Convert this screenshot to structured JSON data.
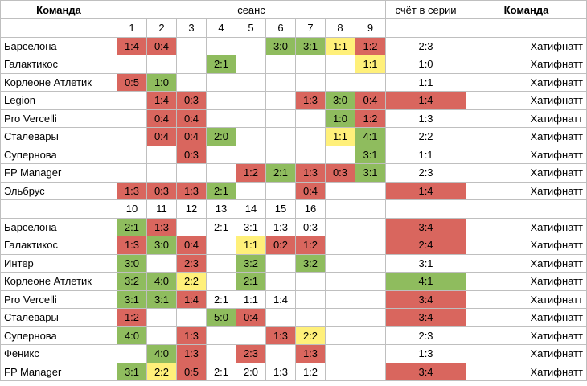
{
  "headers": {
    "team": "Команда",
    "session": "сеанс",
    "series_score": "счёт в серии",
    "opponent": "Команда"
  },
  "colors": {
    "red": "#d9665e",
    "green": "#8fbc5e",
    "yellow": "#fff07a"
  },
  "sections": [
    {
      "sessions": [
        "1",
        "2",
        "3",
        "4",
        "5",
        "6",
        "7",
        "8",
        "9"
      ],
      "rows": [
        {
          "team": "Барселона",
          "cells": [
            {
              "v": "1:4",
              "c": "r"
            },
            {
              "v": "0:4",
              "c": "r"
            },
            {
              "v": "",
              "c": ""
            },
            {
              "v": "",
              "c": ""
            },
            {
              "v": "",
              "c": ""
            },
            {
              "v": "3:0",
              "c": "g"
            },
            {
              "v": "3:1",
              "c": "g"
            },
            {
              "v": "1:1",
              "c": "y"
            },
            {
              "v": "1:2",
              "c": "r"
            }
          ],
          "series": {
            "v": "2:3",
            "c": ""
          },
          "opponent": "Хатифнатт"
        },
        {
          "team": "Галактикос",
          "cells": [
            {
              "v": "",
              "c": ""
            },
            {
              "v": "",
              "c": ""
            },
            {
              "v": "",
              "c": ""
            },
            {
              "v": "2:1",
              "c": "g"
            },
            {
              "v": "",
              "c": ""
            },
            {
              "v": "",
              "c": ""
            },
            {
              "v": "",
              "c": ""
            },
            {
              "v": "",
              "c": ""
            },
            {
              "v": "1:1",
              "c": "y"
            }
          ],
          "series": {
            "v": "1:0",
            "c": ""
          },
          "opponent": "Хатифнатт"
        },
        {
          "team": "Корлеоне Атлетик",
          "cells": [
            {
              "v": "0:5",
              "c": "r"
            },
            {
              "v": "1:0",
              "c": "g"
            },
            {
              "v": "",
              "c": ""
            },
            {
              "v": "",
              "c": ""
            },
            {
              "v": "",
              "c": ""
            },
            {
              "v": "",
              "c": ""
            },
            {
              "v": "",
              "c": ""
            },
            {
              "v": "",
              "c": ""
            },
            {
              "v": "",
              "c": ""
            }
          ],
          "series": {
            "v": "1:1",
            "c": ""
          },
          "opponent": "Хатифнатт"
        },
        {
          "team": "Legion",
          "cells": [
            {
              "v": "",
              "c": ""
            },
            {
              "v": "1:4",
              "c": "r"
            },
            {
              "v": "0:3",
              "c": "r"
            },
            {
              "v": "",
              "c": ""
            },
            {
              "v": "",
              "c": ""
            },
            {
              "v": "",
              "c": ""
            },
            {
              "v": "1:3",
              "c": "r"
            },
            {
              "v": "3:0",
              "c": "g"
            },
            {
              "v": "0:4",
              "c": "r"
            }
          ],
          "series": {
            "v": "1:4",
            "c": "r"
          },
          "opponent": "Хатифнатт"
        },
        {
          "team": "Pro Vercelli",
          "cells": [
            {
              "v": "",
              "c": ""
            },
            {
              "v": "0:4",
              "c": "r"
            },
            {
              "v": "0:4",
              "c": "r"
            },
            {
              "v": "",
              "c": ""
            },
            {
              "v": "",
              "c": ""
            },
            {
              "v": "",
              "c": ""
            },
            {
              "v": "",
              "c": ""
            },
            {
              "v": "1:0",
              "c": "g"
            },
            {
              "v": "1:2",
              "c": "r"
            }
          ],
          "series": {
            "v": "1:3",
            "c": ""
          },
          "opponent": "Хатифнатт"
        },
        {
          "team": "Сталевары",
          "cells": [
            {
              "v": "",
              "c": ""
            },
            {
              "v": "0:4",
              "c": "r"
            },
            {
              "v": "0:4",
              "c": "r"
            },
            {
              "v": "2:0",
              "c": "g"
            },
            {
              "v": "",
              "c": ""
            },
            {
              "v": "",
              "c": ""
            },
            {
              "v": "",
              "c": ""
            },
            {
              "v": "1:1",
              "c": "y"
            },
            {
              "v": "4:1",
              "c": "g"
            }
          ],
          "series": {
            "v": "2:2",
            "c": ""
          },
          "opponent": "Хатифнатт"
        },
        {
          "team": "Супернова",
          "cells": [
            {
              "v": "",
              "c": ""
            },
            {
              "v": "",
              "c": ""
            },
            {
              "v": "0:3",
              "c": "r"
            },
            {
              "v": "",
              "c": ""
            },
            {
              "v": "",
              "c": ""
            },
            {
              "v": "",
              "c": ""
            },
            {
              "v": "",
              "c": ""
            },
            {
              "v": "",
              "c": ""
            },
            {
              "v": "3:1",
              "c": "g"
            }
          ],
          "series": {
            "v": "1:1",
            "c": ""
          },
          "opponent": "Хатифнатт"
        },
        {
          "team": "FP Manager",
          "cells": [
            {
              "v": "",
              "c": ""
            },
            {
              "v": "",
              "c": ""
            },
            {
              "v": "",
              "c": ""
            },
            {
              "v": "",
              "c": ""
            },
            {
              "v": "1:2",
              "c": "r"
            },
            {
              "v": "2:1",
              "c": "g"
            },
            {
              "v": "1:3",
              "c": "r"
            },
            {
              "v": "0:3",
              "c": "r"
            },
            {
              "v": "3:1",
              "c": "g"
            }
          ],
          "series": {
            "v": "2:3",
            "c": ""
          },
          "opponent": "Хатифнатт"
        },
        {
          "team": "Эльбрус",
          "cells": [
            {
              "v": "1:3",
              "c": "r"
            },
            {
              "v": "0:3",
              "c": "r"
            },
            {
              "v": "1:3",
              "c": "r"
            },
            {
              "v": "2:1",
              "c": "g"
            },
            {
              "v": "",
              "c": ""
            },
            {
              "v": "",
              "c": ""
            },
            {
              "v": "0:4",
              "c": "r"
            },
            {
              "v": "",
              "c": ""
            },
            {
              "v": "",
              "c": ""
            }
          ],
          "series": {
            "v": "1:4",
            "c": "r"
          },
          "opponent": "Хатифнатт"
        }
      ]
    },
    {
      "sessions": [
        "10",
        "11",
        "12",
        "13",
        "14",
        "15",
        "16",
        "",
        ""
      ],
      "rows": [
        {
          "team": "Барселона",
          "cells": [
            {
              "v": "2:1",
              "c": "g"
            },
            {
              "v": "1:3",
              "c": "r"
            },
            {
              "v": "",
              "c": ""
            },
            {
              "v": "2:1",
              "c": ""
            },
            {
              "v": "3:1",
              "c": ""
            },
            {
              "v": "1:3",
              "c": ""
            },
            {
              "v": "0:3",
              "c": ""
            },
            {
              "v": "",
              "c": ""
            },
            {
              "v": "",
              "c": ""
            }
          ],
          "series": {
            "v": "3:4",
            "c": "r"
          },
          "opponent": "Хатифнатт"
        },
        {
          "team": "Галактикос",
          "cells": [
            {
              "v": "1:3",
              "c": "r"
            },
            {
              "v": "3:0",
              "c": "g"
            },
            {
              "v": "0:4",
              "c": "r"
            },
            {
              "v": "",
              "c": ""
            },
            {
              "v": "1:1",
              "c": "y"
            },
            {
              "v": "0:2",
              "c": "r"
            },
            {
              "v": "1:2",
              "c": "r"
            },
            {
              "v": "",
              "c": ""
            },
            {
              "v": "",
              "c": ""
            }
          ],
          "series": {
            "v": "2:4",
            "c": "r"
          },
          "opponent": "Хатифнатт"
        },
        {
          "team": "Интер",
          "cells": [
            {
              "v": "3:0",
              "c": "g"
            },
            {
              "v": "",
              "c": ""
            },
            {
              "v": "2:3",
              "c": "r"
            },
            {
              "v": "",
              "c": ""
            },
            {
              "v": "3:2",
              "c": "g"
            },
            {
              "v": "",
              "c": ""
            },
            {
              "v": "3:2",
              "c": "g"
            },
            {
              "v": "",
              "c": ""
            },
            {
              "v": "",
              "c": ""
            }
          ],
          "series": {
            "v": "3:1",
            "c": ""
          },
          "opponent": "Хатифнатт"
        },
        {
          "team": "Корлеоне Атлетик",
          "cells": [
            {
              "v": "3:2",
              "c": "g"
            },
            {
              "v": "4:0",
              "c": "g"
            },
            {
              "v": "2:2",
              "c": "y"
            },
            {
              "v": "",
              "c": ""
            },
            {
              "v": "2:1",
              "c": "g"
            },
            {
              "v": "",
              "c": ""
            },
            {
              "v": "",
              "c": ""
            },
            {
              "v": "",
              "c": ""
            },
            {
              "v": "",
              "c": ""
            }
          ],
          "series": {
            "v": "4:1",
            "c": "g"
          },
          "opponent": "Хатифнатт"
        },
        {
          "team": "Pro Vercelli",
          "cells": [
            {
              "v": "3:1",
              "c": "g"
            },
            {
              "v": "3:1",
              "c": "g"
            },
            {
              "v": "1:4",
              "c": "r"
            },
            {
              "v": "2:1",
              "c": ""
            },
            {
              "v": "1:1",
              "c": ""
            },
            {
              "v": "1:4",
              "c": ""
            },
            {
              "v": "",
              "c": ""
            },
            {
              "v": "",
              "c": ""
            },
            {
              "v": "",
              "c": ""
            }
          ],
          "series": {
            "v": "3:4",
            "c": "r"
          },
          "opponent": "Хатифнатт"
        },
        {
          "team": "Сталевары",
          "cells": [
            {
              "v": "1:2",
              "c": "r"
            },
            {
              "v": "",
              "c": ""
            },
            {
              "v": "",
              "c": ""
            },
            {
              "v": "5:0",
              "c": "g"
            },
            {
              "v": "0:4",
              "c": "r"
            },
            {
              "v": "",
              "c": ""
            },
            {
              "v": "",
              "c": ""
            },
            {
              "v": "",
              "c": ""
            },
            {
              "v": "",
              "c": ""
            }
          ],
          "series": {
            "v": "3:4",
            "c": "r"
          },
          "opponent": "Хатифнатт"
        },
        {
          "team": "Супернова",
          "cells": [
            {
              "v": "4:0",
              "c": "g"
            },
            {
              "v": "",
              "c": ""
            },
            {
              "v": "1:3",
              "c": "r"
            },
            {
              "v": "",
              "c": ""
            },
            {
              "v": "",
              "c": ""
            },
            {
              "v": "1:3",
              "c": "r"
            },
            {
              "v": "2:2",
              "c": "y"
            },
            {
              "v": "",
              "c": ""
            },
            {
              "v": "",
              "c": ""
            }
          ],
          "series": {
            "v": "2:3",
            "c": ""
          },
          "opponent": "Хатифнатт"
        },
        {
          "team": "Феникс",
          "cells": [
            {
              "v": "",
              "c": ""
            },
            {
              "v": "4:0",
              "c": "g"
            },
            {
              "v": "1:3",
              "c": "r"
            },
            {
              "v": "",
              "c": ""
            },
            {
              "v": "2:3",
              "c": "r"
            },
            {
              "v": "",
              "c": ""
            },
            {
              "v": "1:3",
              "c": "r"
            },
            {
              "v": "",
              "c": ""
            },
            {
              "v": "",
              "c": ""
            }
          ],
          "series": {
            "v": "1:3",
            "c": ""
          },
          "opponent": "Хатифнатт"
        },
        {
          "team": "FP Manager",
          "cells": [
            {
              "v": "3:1",
              "c": "g"
            },
            {
              "v": "2:2",
              "c": "y"
            },
            {
              "v": "0:5",
              "c": "r"
            },
            {
              "v": "2:1",
              "c": ""
            },
            {
              "v": "2:0",
              "c": ""
            },
            {
              "v": "1:3",
              "c": ""
            },
            {
              "v": "1:2",
              "c": ""
            },
            {
              "v": "",
              "c": ""
            },
            {
              "v": "",
              "c": ""
            }
          ],
          "series": {
            "v": "3:4",
            "c": "r"
          },
          "opponent": "Хатифнатт"
        }
      ]
    }
  ]
}
